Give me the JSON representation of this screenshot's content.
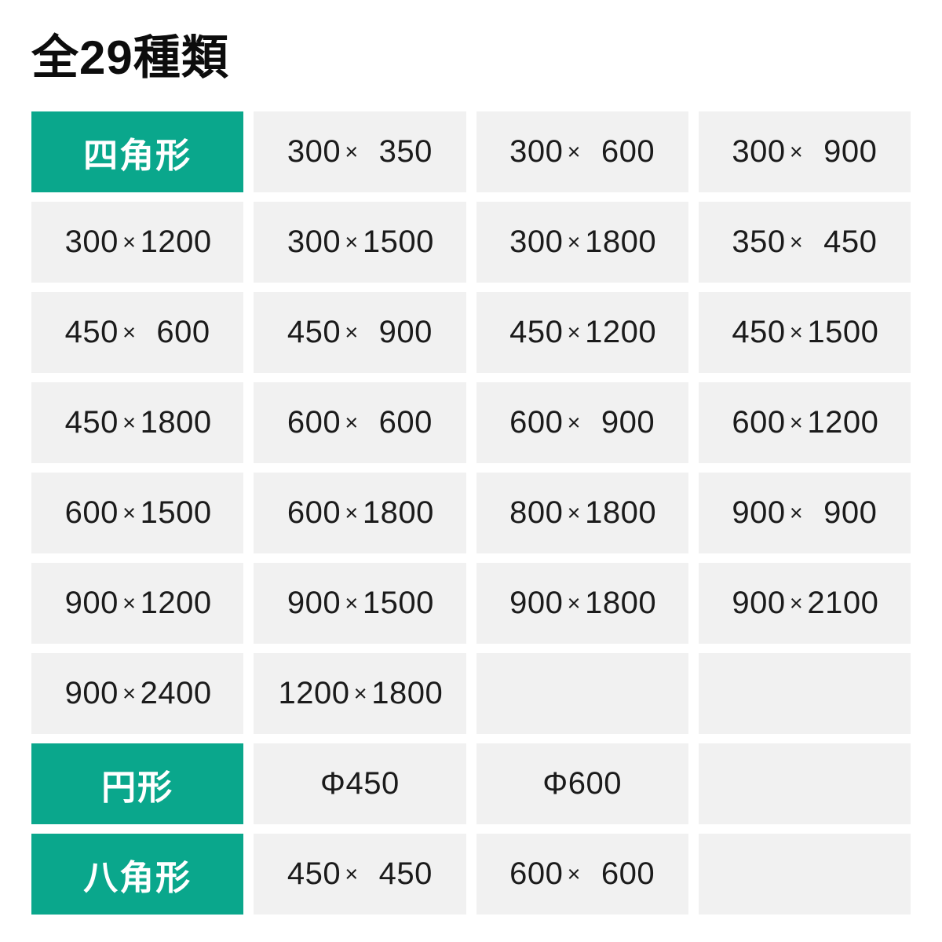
{
  "title": "全29種類",
  "symbols": {
    "times": "×"
  },
  "colors": {
    "accent": "#0aa78c",
    "cell_bg": "#f1f1f1",
    "cell_text": "#1b1b1b",
    "title_text": "#0d0d0d",
    "category_text": "#ffffff",
    "page_bg": "#ffffff"
  },
  "grid": {
    "categories": [
      {
        "label": "四角形"
      },
      {
        "label": "円形"
      },
      {
        "label": "八角形"
      }
    ],
    "rows": [
      {
        "cells": [
          {
            "label": "四角形"
          },
          {
            "w": "300",
            "h": "350"
          },
          {
            "w": "300",
            "h": "600"
          },
          {
            "w": "300",
            "h": "900"
          }
        ]
      },
      {
        "cells": [
          {
            "w": "300",
            "h": "1200"
          },
          {
            "w": "300",
            "h": "1500"
          },
          {
            "w": "300",
            "h": "1800"
          },
          {
            "w": "350",
            "h": "450"
          }
        ]
      },
      {
        "cells": [
          {
            "w": "450",
            "h": "600"
          },
          {
            "w": "450",
            "h": "900"
          },
          {
            "w": "450",
            "h": "1200"
          },
          {
            "w": "450",
            "h": "1500"
          }
        ]
      },
      {
        "cells": [
          {
            "w": "450",
            "h": "1800"
          },
          {
            "w": "600",
            "h": "600"
          },
          {
            "w": "600",
            "h": "900"
          },
          {
            "w": "600",
            "h": "1200"
          }
        ]
      },
      {
        "cells": [
          {
            "w": "600",
            "h": "1500"
          },
          {
            "w": "600",
            "h": "1800"
          },
          {
            "w": "800",
            "h": "1800"
          },
          {
            "w": "900",
            "h": "900"
          }
        ]
      },
      {
        "cells": [
          {
            "w": "900",
            "h": "1200"
          },
          {
            "w": "900",
            "h": "1500"
          },
          {
            "w": "900",
            "h": "1800"
          },
          {
            "w": "900",
            "h": "2100"
          }
        ]
      },
      {
        "cells": [
          {
            "w": "900",
            "h": "2400"
          },
          {
            "w": "1200",
            "h": "1800"
          },
          {},
          {}
        ]
      },
      {
        "cells": [
          {
            "label": "円形"
          },
          {
            "label": "Φ450"
          },
          {
            "label": "Φ600"
          },
          {}
        ]
      },
      {
        "cells": [
          {
            "label": "八角形"
          },
          {
            "w": "450",
            "h": "450"
          },
          {
            "w": "600",
            "h": "600"
          },
          {}
        ]
      }
    ]
  }
}
